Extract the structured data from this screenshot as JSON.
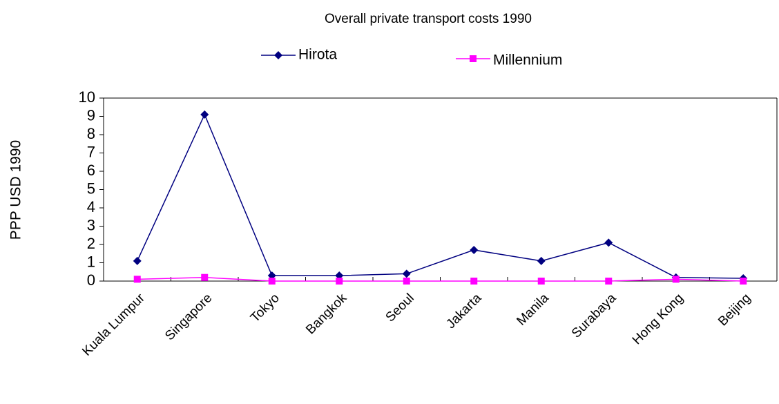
{
  "chart_data": {
    "type": "line",
    "title": "Overall private transport costs 1990",
    "ylabel": "PPP USD 1990",
    "categories": [
      "Kuala Lumpur",
      "Singapore",
      "Tokyo",
      "Bangkok",
      "Seoul",
      "Jakarta",
      "Manila",
      "Surabaya",
      "Hong Kong",
      "Beijing"
    ],
    "series": [
      {
        "name": "Hirota",
        "color": "#000080",
        "marker": "diamond",
        "values": [
          1.1,
          9.1,
          0.3,
          0.3,
          0.4,
          1.7,
          1.1,
          2.1,
          0.2,
          0.15
        ]
      },
      {
        "name": "Millennium",
        "color": "#ff00ff",
        "marker": "square",
        "values": [
          0.1,
          0.2,
          0,
          0,
          0,
          0,
          0,
          0,
          0.1,
          0
        ]
      }
    ],
    "ylim": [
      0,
      10
    ],
    "yticks": [
      0,
      1,
      2,
      3,
      4,
      5,
      6,
      7,
      8,
      9,
      10
    ],
    "grid": false
  }
}
